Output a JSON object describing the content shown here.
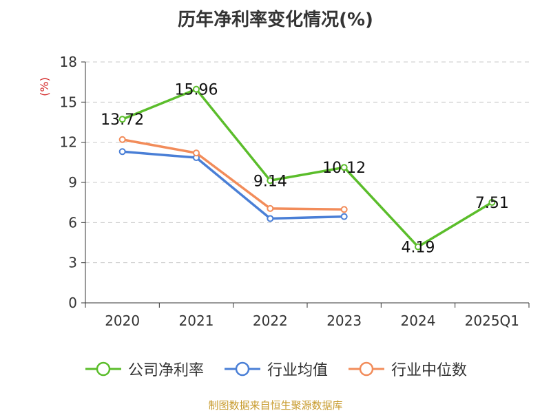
{
  "title": "历年净利率变化情况(%)",
  "source": "制图数据来自恒生聚源数据库",
  "chart_data": {
    "type": "line",
    "title": "历年净利率变化情况(%)",
    "ylabel": "(%)",
    "xlabel": "",
    "ylim": [
      0,
      18
    ],
    "yticks": [
      "0",
      "3",
      "6",
      "9",
      "12",
      "15",
      "18"
    ],
    "categories": [
      "2020",
      "2021",
      "2022",
      "2023",
      "2024",
      "2025Q1"
    ],
    "grid": true,
    "legend_position": "bottom",
    "series": [
      {
        "name": "公司净利率",
        "color": "#5bbd2b",
        "values": [
          13.72,
          15.96,
          9.14,
          10.12,
          4.19,
          7.51
        ],
        "labels": [
          "13.72",
          "15.96",
          "9.14",
          "10.12",
          "4.19",
          "7.51"
        ]
      },
      {
        "name": "行业均值",
        "color": "#4a7fd6",
        "values": [
          11.3,
          10.85,
          6.3,
          6.45,
          null,
          null
        ]
      },
      {
        "name": "行业中位数",
        "color": "#f28c5a",
        "values": [
          12.2,
          11.2,
          7.05,
          6.98,
          null,
          null
        ]
      }
    ]
  }
}
